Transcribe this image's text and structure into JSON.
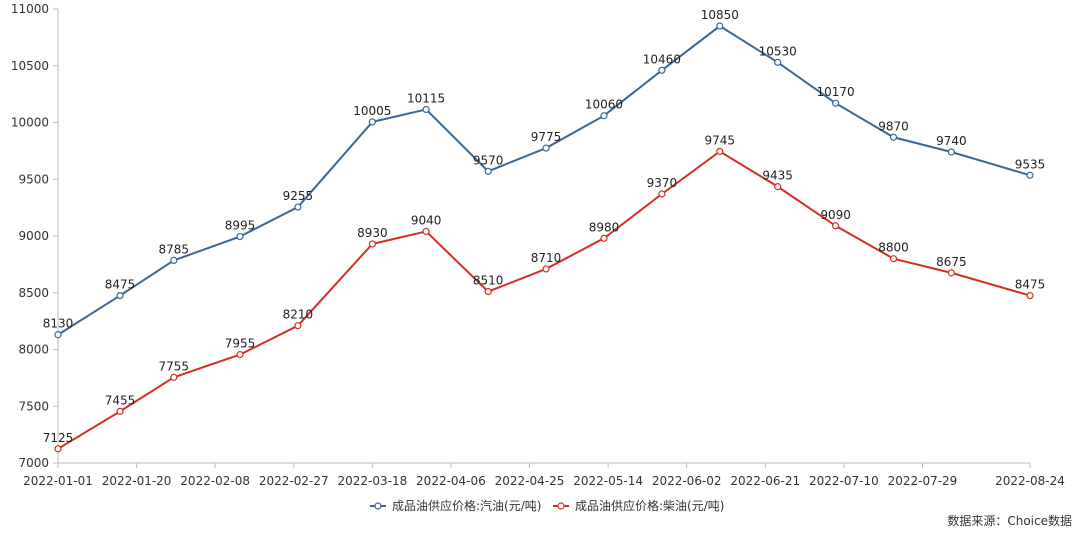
{
  "chart_data": {
    "type": "line",
    "y_min": 7000,
    "y_max": 11000,
    "y_ticks": [
      "7000",
      "7500",
      "8000",
      "8500",
      "9000",
      "9500",
      "10000",
      "10500",
      "11000"
    ],
    "x_tick_labels": [
      "2022-01-01",
      "2022-01-20",
      "2022-02-08",
      "2022-02-27",
      "2022-03-18",
      "2022-04-06",
      "2022-04-25",
      "2022-05-14",
      "2022-06-02",
      "2022-06-21",
      "2022-07-10",
      "2022-07-29",
      "2022-08-24"
    ],
    "x": [
      "2022-01-01",
      "2022-01-16",
      "2022-01-29",
      "2022-02-14",
      "2022-02-28",
      "2022-03-18",
      "2022-03-31",
      "2022-04-15",
      "2022-04-29",
      "2022-05-13",
      "2022-05-27",
      "2022-06-10",
      "2022-06-24",
      "2022-07-08",
      "2022-07-22",
      "2022-08-05",
      "2022-08-24"
    ],
    "grid": false,
    "legend_position": "bottom",
    "series": [
      {
        "name": "成品油供应价格:汽油(元/吨)",
        "color": "#3b6792",
        "values": [
          8130,
          8475,
          8785,
          8995,
          9255,
          10005,
          10115,
          9570,
          9775,
          10060,
          10460,
          10850,
          10530,
          10170,
          9870,
          9740,
          9535
        ]
      },
      {
        "name": "成品油供应价格:柴油(元/吨)",
        "color": "#d22f27",
        "values": [
          7125,
          7455,
          7755,
          7955,
          8210,
          8930,
          9040,
          8510,
          8710,
          8980,
          9370,
          9745,
          9435,
          9090,
          8800,
          8675,
          8475
        ]
      }
    ]
  },
  "source_text": "数据来源：Choice数据"
}
